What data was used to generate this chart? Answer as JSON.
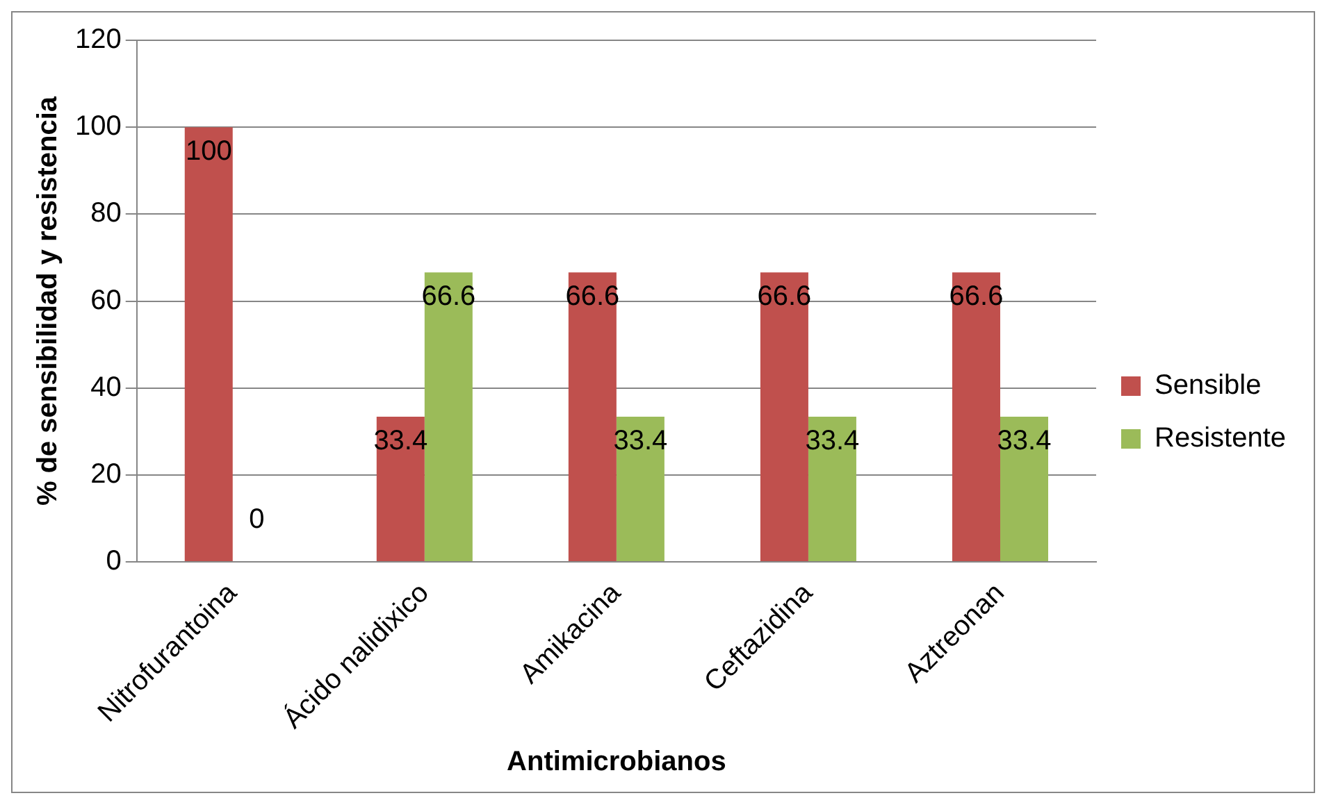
{
  "chart_data": {
    "type": "bar",
    "xlabel": "Antimicrobianos",
    "ylabel": "% de sensibilidad y resistencia",
    "categories": [
      "Nitrofurantoina",
      "Ácido nalidixico",
      "Amikacina",
      "Ceftazidina",
      "Aztreonan"
    ],
    "series": [
      {
        "name": "Sensible",
        "color": "#c0504d",
        "values": [
          100,
          33.4,
          66.6,
          66.6,
          66.6
        ]
      },
      {
        "name": "Resistente",
        "color": "#9bbb59",
        "values": [
          0,
          66.6,
          33.4,
          33.4,
          33.4
        ]
      }
    ],
    "ylim": [
      0,
      120
    ],
    "yticks": [
      0,
      20,
      40,
      60,
      80,
      100,
      120
    ],
    "grid": "y",
    "legend": "right",
    "data_labels": true
  }
}
